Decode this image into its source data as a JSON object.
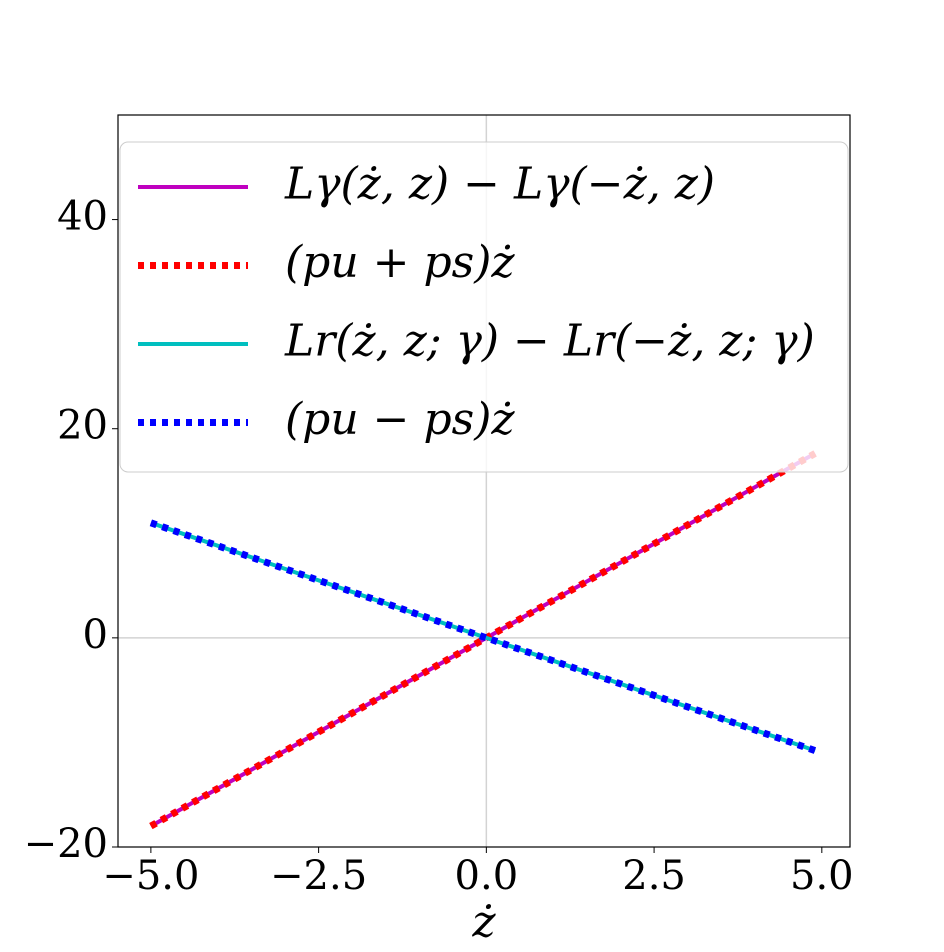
{
  "chart_data": {
    "type": "line",
    "x_label": "ż",
    "x": [
      -5,
      -2.5,
      0,
      2.5,
      4.9
    ],
    "series": [
      {
        "name": "Lγ(ż, z) − Lγ(−ż, z)",
        "color": "#bf00bf",
        "style": "solid",
        "values": [
          -18,
          -9,
          0,
          9,
          17.64
        ]
      },
      {
        "name": "(pu + ps)ż",
        "color": "#ff0000",
        "style": "dotted",
        "values": [
          -18,
          -9,
          0,
          9,
          17.64
        ]
      },
      {
        "name": "Lr(ż, z; γ) − Lr(−ż, z; γ)",
        "color": "#00bfbf",
        "style": "solid",
        "values": [
          11,
          5.5,
          0,
          -5.5,
          -10.78
        ]
      },
      {
        "name": "(pu − ps)ż",
        "color": "#0000ff",
        "style": "dotted",
        "values": [
          11,
          5.5,
          0,
          -5.5,
          -10.78
        ]
      }
    ],
    "xlim": [
      -5.49,
      5.42
    ],
    "ylim": [
      -20,
      50
    ],
    "xticks": [
      {
        "value": -5,
        "label": "−5.0"
      },
      {
        "value": -2.5,
        "label": "−2.5"
      },
      {
        "value": 0,
        "label": "0.0"
      },
      {
        "value": 2.5,
        "label": "2.5"
      },
      {
        "value": 5,
        "label": "5.0"
      }
    ],
    "yticks": [
      {
        "value": -20,
        "label": "−20"
      },
      0,
      20,
      40
    ],
    "zero_lines": true,
    "legend": "upper"
  }
}
